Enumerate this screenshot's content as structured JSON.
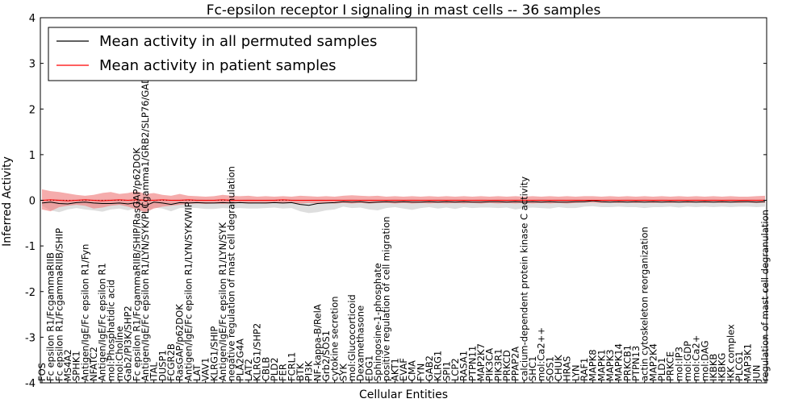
{
  "chart_data": {
    "type": "line",
    "title": "Fc-epsilon receptor I signaling in mast cells -- 36 samples",
    "xlabel": "Cellular Entities",
    "ylabel": "Inferred Activity",
    "ylim": [
      -4,
      4
    ],
    "yticks": [
      "-4",
      "-3",
      "-2",
      "-1",
      "0",
      "1",
      "2",
      "3",
      "4"
    ],
    "legend_position": "top-left",
    "colors": {
      "permuted": "#000000",
      "patient": "#ff0000",
      "patient_band": "#f08080",
      "permuted_band": "#c8c8c8",
      "baseline": "#000000"
    },
    "categories": [
      "FOS",
      "Fc epsilon R1/FcgammaRIIB",
      "Fc epsilon R1/FcgammaRIIB/SHIP",
      "MS4A2",
      "SPHK1",
      "Antigen/IgE/Fc epsilon R1/Fyn",
      "NFATC2",
      "Antigen/IgE/Fc epsilon R1",
      "mol:Phosphatidic acid",
      "mol:Choline",
      "Gab2/PI3K/SHP2",
      "Fc epsilon R1/FcgammaRIIB/SHIP/RasGAP/p62DOK",
      "Antigen/IgE/Fc epsilon R1/LYN/SYK/PLCgamma1/GRB2/SLP76/GADs",
      "ITAL",
      "DUSP1",
      "FCGR2B",
      "RasGAP/p62DOK",
      "Antigen/IgE/Fc epsilon R1/LYN/SYK/WIP",
      "LAT",
      "VAV1",
      "KLRG1/SHIP",
      "Antigen/IgE/Fc epsilon R1/LYN/SYK",
      "negative regulation of mast cell degranulation",
      "PLA2G4A",
      "LAT2",
      "KLRG1/SHP2",
      "CBLB",
      "PLD2",
      "FER",
      "FCRL1",
      "BTK",
      "PI3K",
      "NF-kappa-B/RelA",
      "Grb2/SOS1",
      "cytokine secretion",
      "SYK",
      "mol:Glucocorticoid",
      "Dexamethasone",
      "EDG1",
      "Sphingosine-1-phosphate",
      "positive regulation of cell migration",
      "AKT1",
      "EVAF",
      "CMA",
      "FYN",
      "GAB2",
      "KLRG1",
      "SPI1",
      "LCP2",
      "RASA1",
      "PTPN11",
      "MAP2K7",
      "PIK3CA",
      "PIK3R1",
      "PRKCD",
      "PPAP2A",
      "calcium-dependent protein kinase C activity",
      "SHC1",
      "mol:Ca2++",
      "SOS1",
      "CHUK",
      "HRAS",
      "LYN",
      "RAF1",
      "MAPK8",
      "MAPK1",
      "MAPK3",
      "MAPK14",
      "PRKCB1",
      "PTPN13",
      "actin cytoskeleton reorganization",
      "MAP2K4",
      "PLD1",
      "PRKCE",
      "mol:IP3",
      "mol:GDP",
      "mol:Ca2+",
      "mol:DAG",
      "IKBKB",
      "IKBKG",
      "IKK complex",
      "PLCG1",
      "MAP3K1",
      "JUN",
      "regulation of mast cell degranulation"
    ],
    "series": [
      {
        "name": "Mean activity in all permuted samples",
        "color": "#000000",
        "values": [
          -0.06,
          -0.04,
          -0.07,
          -0.08,
          -0.05,
          -0.04,
          -0.06,
          -0.07,
          -0.07,
          -0.06,
          -0.08,
          -0.05,
          -0.12,
          -0.04,
          -0.06,
          -0.09,
          -0.05,
          -0.06,
          -0.05,
          -0.06,
          -0.06,
          -0.05,
          -0.06,
          -0.05,
          -0.06,
          -0.06,
          -0.06,
          -0.05,
          -0.06,
          -0.05,
          -0.09,
          -0.11,
          -0.07,
          -0.06,
          -0.05,
          -0.03,
          -0.04,
          -0.03,
          -0.05,
          -0.04,
          -0.03,
          -0.04,
          -0.03,
          -0.04,
          -0.04,
          -0.03,
          -0.04,
          -0.03,
          -0.04,
          -0.03,
          -0.04,
          -0.04,
          -0.03,
          -0.03,
          -0.04,
          -0.03,
          -0.04,
          -0.03,
          -0.04,
          -0.03,
          -0.04,
          -0.04,
          -0.03,
          -0.03,
          -0.01,
          -0.03,
          -0.04,
          -0.03,
          -0.04,
          -0.03,
          -0.04,
          -0.03,
          -0.04,
          -0.03,
          -0.04,
          -0.03,
          -0.04,
          -0.03,
          -0.04,
          -0.03,
          -0.04,
          -0.03,
          -0.03,
          -0.04,
          -0.03
        ]
      },
      {
        "name": "Mean activity in patient samples",
        "color": "#ff0000",
        "values": [
          0.0,
          0.01,
          0.0,
          -0.01,
          0.0,
          0.01,
          0.0,
          -0.01,
          0.0,
          0.01,
          0.0,
          0.01,
          0.0,
          0.0,
          0.01,
          0.0,
          0.0,
          0.01,
          0.0,
          0.0,
          0.0,
          0.01,
          0.0,
          0.0,
          0.0,
          0.0,
          0.0,
          0.0,
          0.01,
          0.0,
          0.0,
          0.0,
          0.0,
          0.0,
          0.0,
          0.0,
          0.0,
          0.0,
          0.0,
          0.0,
          0.0,
          0.0,
          0.0,
          0.0,
          0.0,
          0.0,
          0.0,
          0.0,
          0.0,
          0.0,
          0.0,
          0.0,
          0.0,
          0.0,
          0.0,
          0.0,
          0.0,
          0.0,
          0.0,
          0.0,
          0.0,
          0.0,
          0.0,
          0.0,
          0.0,
          0.0,
          0.0,
          0.0,
          0.0,
          0.0,
          0.0,
          0.0,
          0.0,
          0.0,
          0.0,
          0.0,
          0.0,
          0.0,
          0.0,
          0.0,
          0.0,
          0.0,
          0.0,
          0.0,
          0.0
        ]
      }
    ],
    "permuted_band": {
      "upper": [
        0.0,
        0.02,
        0.03,
        0.01,
        0.02,
        0.03,
        0.02,
        0.02,
        0.03,
        0.02,
        0.02,
        0.03,
        0.02,
        0.03,
        0.02,
        0.02,
        0.03,
        0.02,
        0.03,
        0.02,
        0.02,
        0.03,
        0.02,
        0.02,
        0.03,
        0.02,
        0.02,
        0.03,
        0.02,
        0.03,
        0.02,
        0.02,
        0.03,
        0.02,
        0.03,
        0.02,
        0.03,
        0.02,
        0.03,
        0.02,
        0.02,
        0.03,
        0.02,
        0.03,
        0.02,
        0.02,
        0.03,
        0.02,
        0.03,
        0.02,
        0.02,
        0.03,
        0.02,
        0.03,
        0.02,
        0.03,
        0.02,
        0.02,
        0.03,
        0.02,
        0.03,
        0.02,
        0.03,
        0.02,
        0.03,
        0.02,
        0.03,
        0.02,
        0.03,
        0.02,
        0.03,
        0.02,
        0.03,
        0.02,
        0.03,
        0.02,
        0.03,
        0.02,
        0.03,
        0.02,
        0.03,
        0.02,
        0.03,
        0.02,
        0.03
      ],
      "lower": [
        -0.12,
        -0.22,
        -0.26,
        -0.2,
        -0.17,
        -0.2,
        -0.22,
        -0.25,
        -0.2,
        -0.18,
        -0.22,
        -0.17,
        -0.3,
        -0.16,
        -0.18,
        -0.24,
        -0.17,
        -0.16,
        -0.17,
        -0.19,
        -0.19,
        -0.17,
        -0.18,
        -0.17,
        -0.18,
        -0.18,
        -0.17,
        -0.16,
        -0.18,
        -0.17,
        -0.24,
        -0.28,
        -0.26,
        -0.22,
        -0.2,
        -0.14,
        -0.17,
        -0.16,
        -0.2,
        -0.22,
        -0.17,
        -0.15,
        -0.18,
        -0.21,
        -0.17,
        -0.15,
        -0.18,
        -0.16,
        -0.19,
        -0.15,
        -0.17,
        -0.16,
        -0.16,
        -0.17,
        -0.16,
        -0.2,
        -0.17,
        -0.16,
        -0.17,
        -0.18,
        -0.15,
        -0.17,
        -0.17,
        -0.14,
        -0.13,
        -0.15,
        -0.15,
        -0.14,
        -0.15,
        -0.15,
        -0.17,
        -0.15,
        -0.15,
        -0.14,
        -0.16,
        -0.14,
        -0.15,
        -0.14,
        -0.15,
        -0.14,
        -0.15,
        -0.14,
        -0.14,
        -0.15,
        -0.14
      ]
    },
    "patient_band": {
      "upper": [
        0.24,
        0.2,
        0.18,
        0.15,
        0.12,
        0.1,
        0.12,
        0.16,
        0.18,
        0.14,
        0.16,
        0.2,
        0.14,
        0.16,
        0.12,
        0.1,
        0.14,
        0.1,
        0.09,
        0.08,
        0.09,
        0.12,
        0.1,
        0.09,
        0.1,
        0.08,
        0.09,
        0.08,
        0.09,
        0.08,
        0.1,
        0.09,
        0.08,
        0.09,
        0.08,
        0.1,
        0.11,
        0.1,
        0.09,
        0.1,
        0.08,
        0.09,
        0.08,
        0.09,
        0.08,
        0.09,
        0.08,
        0.09,
        0.08,
        0.09,
        0.08,
        0.09,
        0.08,
        0.09,
        0.08,
        0.09,
        0.08,
        0.09,
        0.08,
        0.09,
        0.08,
        0.09,
        0.08,
        0.09,
        0.09,
        0.08,
        0.09,
        0.08,
        0.09,
        0.08,
        0.09,
        0.08,
        0.09,
        0.08,
        0.09,
        0.08,
        0.09,
        0.08,
        0.09,
        0.08,
        0.09,
        0.08,
        0.08,
        0.09,
        0.1
      ],
      "lower": [
        -0.2,
        -0.24,
        -0.15,
        -0.12,
        -0.1,
        -0.12,
        -0.18,
        -0.16,
        -0.12,
        -0.1,
        -0.14,
        -0.2,
        -0.26,
        -0.18,
        -0.14,
        -0.12,
        -0.1,
        -0.08,
        -0.07,
        -0.08,
        -0.07,
        -0.08,
        -0.07,
        -0.06,
        -0.07,
        -0.06,
        -0.07,
        -0.06,
        -0.07,
        -0.06,
        -0.07,
        -0.06,
        -0.07,
        -0.06,
        -0.07,
        -0.06,
        -0.07,
        -0.06,
        -0.07,
        -0.06,
        -0.06,
        -0.07,
        -0.06,
        -0.07,
        -0.06,
        -0.07,
        -0.06,
        -0.07,
        -0.06,
        -0.07,
        -0.06,
        -0.07,
        -0.06,
        -0.07,
        -0.06,
        -0.07,
        -0.06,
        -0.07,
        -0.06,
        -0.07,
        -0.06,
        -0.07,
        -0.06,
        -0.05,
        -0.05,
        -0.06,
        -0.05,
        -0.06,
        -0.05,
        -0.06,
        -0.05,
        -0.06,
        -0.05,
        -0.06,
        -0.05,
        -0.06,
        -0.05,
        -0.06,
        -0.05,
        -0.06,
        -0.05,
        -0.06,
        -0.05,
        -0.06,
        -0.05
      ]
    }
  }
}
